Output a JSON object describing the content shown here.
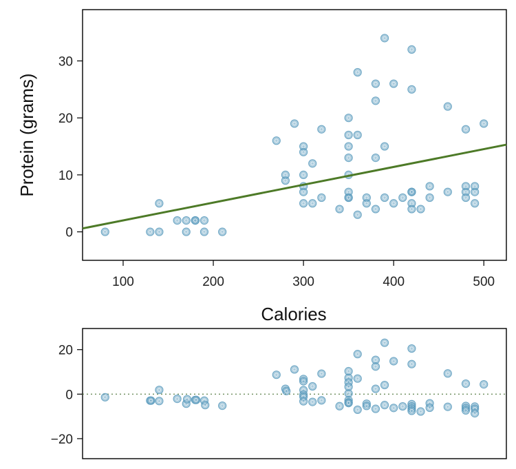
{
  "colors": {
    "point": "#5b9bbd",
    "regression_line": "#4d7a27",
    "zero_line": "#6b8c5a",
    "frame": "#000000"
  },
  "chart_data": [
    {
      "type": "scatter",
      "title": "",
      "xlabel": "Calories",
      "ylabel": "Protein (grams)",
      "xlim": [
        55,
        525
      ],
      "ylim": [
        -5,
        39
      ],
      "xticks": [
        100,
        200,
        300,
        400,
        500
      ],
      "yticks": [
        0,
        10,
        20,
        30
      ],
      "grid": false,
      "regression_line": {
        "x": [
          55,
          525
        ],
        "y": [
          0.6,
          15.3
        ]
      },
      "points": [
        [
          80,
          0
        ],
        [
          130,
          0
        ],
        [
          140,
          0
        ],
        [
          140,
          5
        ],
        [
          160,
          2
        ],
        [
          170,
          2
        ],
        [
          170,
          0
        ],
        [
          180,
          2
        ],
        [
          180,
          2
        ],
        [
          190,
          2
        ],
        [
          190,
          0
        ],
        [
          210,
          0
        ],
        [
          270,
          16
        ],
        [
          280,
          10
        ],
        [
          280,
          9
        ],
        [
          290,
          19
        ],
        [
          300,
          15
        ],
        [
          300,
          14
        ],
        [
          300,
          10
        ],
        [
          300,
          8
        ],
        [
          300,
          7
        ],
        [
          300,
          5
        ],
        [
          310,
          12
        ],
        [
          310,
          5
        ],
        [
          320,
          18
        ],
        [
          320,
          6
        ],
        [
          340,
          4
        ],
        [
          350,
          20
        ],
        [
          350,
          17
        ],
        [
          350,
          15
        ],
        [
          350,
          13
        ],
        [
          350,
          10
        ],
        [
          350,
          7
        ],
        [
          350,
          6
        ],
        [
          350,
          6
        ],
        [
          360,
          28
        ],
        [
          360,
          17
        ],
        [
          360,
          3
        ],
        [
          370,
          6
        ],
        [
          370,
          5
        ],
        [
          380,
          26
        ],
        [
          380,
          23
        ],
        [
          380,
          13
        ],
        [
          380,
          4
        ],
        [
          390,
          34
        ],
        [
          390,
          15
        ],
        [
          390,
          6
        ],
        [
          400,
          26
        ],
        [
          400,
          5
        ],
        [
          410,
          6
        ],
        [
          420,
          32
        ],
        [
          420,
          25
        ],
        [
          420,
          7
        ],
        [
          420,
          7
        ],
        [
          420,
          5
        ],
        [
          420,
          4
        ],
        [
          430,
          4
        ],
        [
          440,
          8
        ],
        [
          440,
          6
        ],
        [
          460,
          22
        ],
        [
          460,
          7
        ],
        [
          480,
          18
        ],
        [
          480,
          8
        ],
        [
          480,
          7
        ],
        [
          480,
          6
        ],
        [
          490,
          8
        ],
        [
          490,
          7
        ],
        [
          490,
          5
        ],
        [
          500,
          19
        ]
      ]
    },
    {
      "type": "scatter",
      "title": "",
      "xlabel": "",
      "ylabel": "",
      "xlim": [
        55,
        525
      ],
      "ylim": [
        -29,
        29.5
      ],
      "yticks": [
        -20,
        0,
        20
      ],
      "grid": false,
      "reference_line_y": 0,
      "points": [
        [
          80,
          -1.4
        ],
        [
          130,
          -2.9
        ],
        [
          131,
          -2.9
        ],
        [
          140,
          -3.1
        ],
        [
          140,
          1.9
        ],
        [
          160,
          -2.1
        ],
        [
          170,
          -4.3
        ],
        [
          171,
          -2.3
        ],
        [
          180,
          -2.6
        ],
        [
          181,
          -2.6
        ],
        [
          190,
          -2.9
        ],
        [
          191,
          -4.9
        ],
        [
          210,
          -5.2
        ],
        [
          270,
          8.7
        ],
        [
          280,
          2.4
        ],
        [
          281,
          1.4
        ],
        [
          290,
          11.1
        ],
        [
          300,
          6.8
        ],
        [
          300,
          5.8
        ],
        [
          300,
          1.8
        ],
        [
          300,
          -0.2
        ],
        [
          300,
          -1.2
        ],
        [
          300,
          -3.2
        ],
        [
          310,
          3.5
        ],
        [
          310,
          -3.5
        ],
        [
          320,
          9.2
        ],
        [
          320,
          -2.8
        ],
        [
          340,
          -5.4
        ],
        [
          350,
          10.3
        ],
        [
          350,
          7.3
        ],
        [
          350,
          5.3
        ],
        [
          350,
          3.3
        ],
        [
          350,
          0.3
        ],
        [
          350,
          -2.7
        ],
        [
          350,
          -3.7
        ],
        [
          350,
          -4.0
        ],
        [
          360,
          18.0
        ],
        [
          360,
          7.0
        ],
        [
          360,
          -7.0
        ],
        [
          370,
          -4.3
        ],
        [
          370,
          -5.3
        ],
        [
          380,
          15.4
        ],
        [
          380,
          12.4
        ],
        [
          380,
          2.4
        ],
        [
          380,
          -6.6
        ],
        [
          390,
          23.1
        ],
        [
          390,
          4.1
        ],
        [
          390,
          -4.9
        ],
        [
          400,
          14.8
        ],
        [
          400,
          -6.2
        ],
        [
          410,
          -5.5
        ],
        [
          420,
          20.5
        ],
        [
          420,
          13.5
        ],
        [
          420,
          -4.5
        ],
        [
          420,
          -5.5
        ],
        [
          420,
          -6.5
        ],
        [
          420,
          -7.5
        ],
        [
          430,
          -7.8
        ],
        [
          440,
          -4.1
        ],
        [
          440,
          -6.1
        ],
        [
          460,
          9.3
        ],
        [
          460,
          -5.7
        ],
        [
          480,
          4.7
        ],
        [
          480,
          -5.3
        ],
        [
          480,
          -6.3
        ],
        [
          480,
          -7.3
        ],
        [
          490,
          -5.6
        ],
        [
          490,
          -6.6
        ],
        [
          490,
          -8.6
        ],
        [
          500,
          4.4
        ]
      ]
    }
  ]
}
